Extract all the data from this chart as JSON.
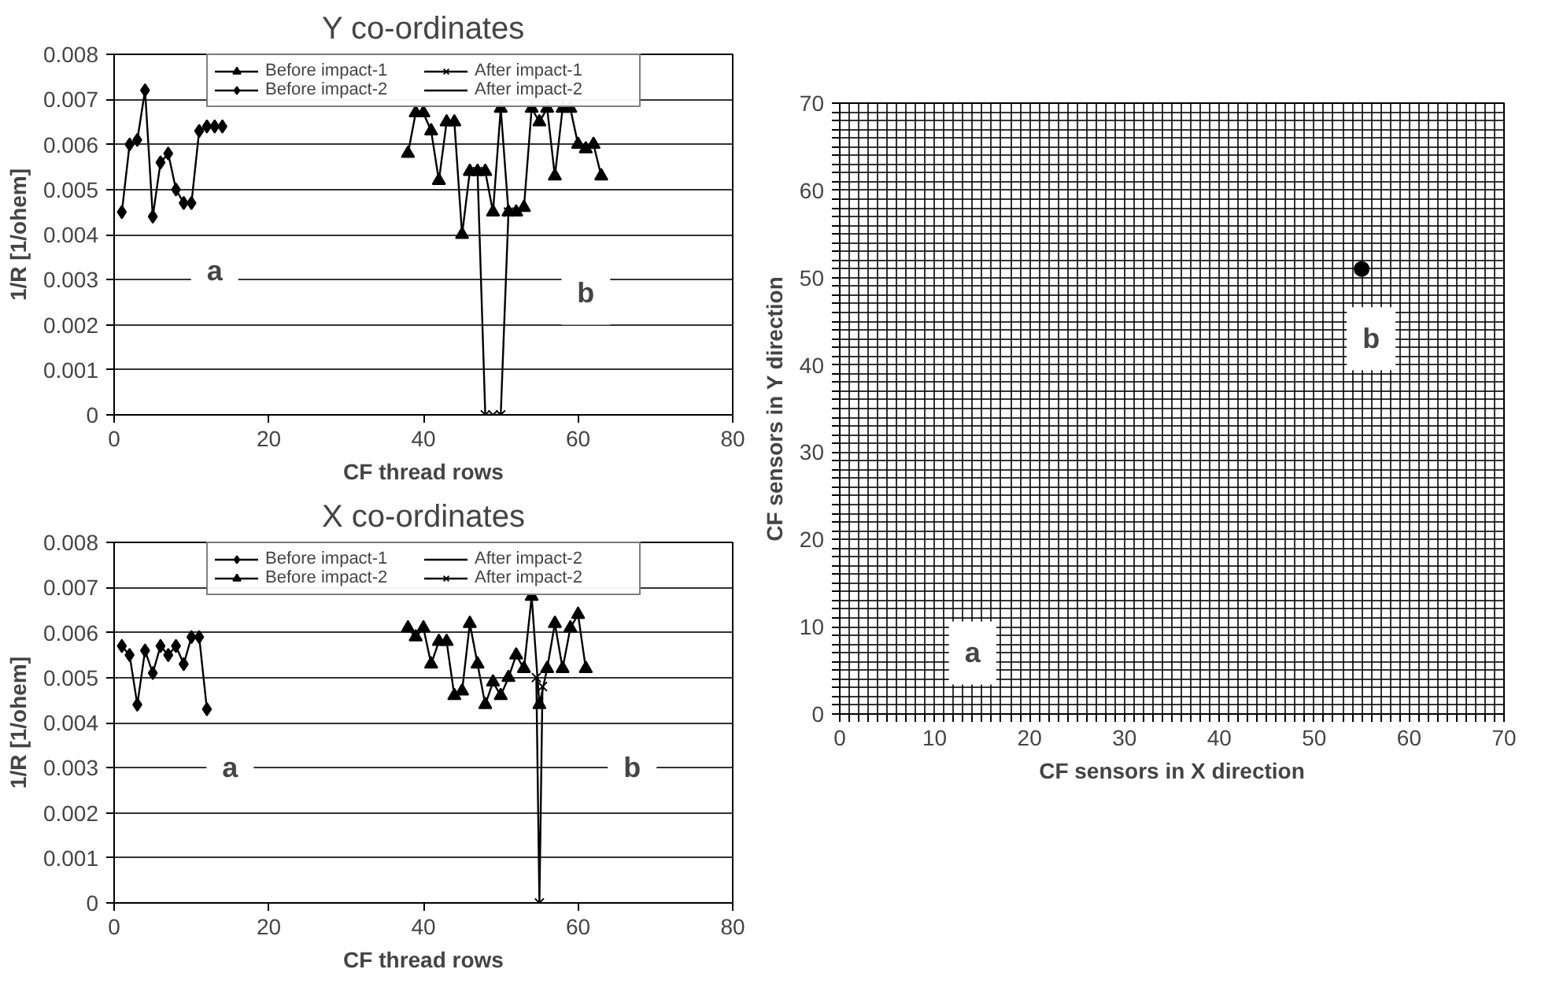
{
  "chart_data": [
    {
      "type": "line",
      "title": "Y co-ordinates",
      "xlabel": "CF thread rows",
      "ylabel": "1/R [1/ohem]",
      "xlim": [
        0,
        80
      ],
      "ylim": [
        0,
        0.008
      ],
      "xticks": [
        0,
        20,
        40,
        60,
        80
      ],
      "yticks": [
        0,
        0.001,
        0.002,
        0.003,
        0.004,
        0.005,
        0.006,
        0.007,
        0.008
      ],
      "grid": "y",
      "legend": "top",
      "series": [
        {
          "name": "Before impact-1",
          "color": "#000000",
          "marker": "triangle",
          "x": [
            38,
            39,
            40,
            41,
            42,
            43,
            44,
            45,
            46,
            47,
            48,
            49,
            50,
            51,
            52,
            53,
            54,
            55,
            56,
            57,
            58,
            59,
            60,
            61,
            62,
            63
          ],
          "values": [
            0.0058,
            0.0067,
            0.0067,
            0.0063,
            0.0052,
            0.0065,
            0.0065,
            0.004,
            0.0054,
            0.0054,
            0.0054,
            0.0045,
            0.0068,
            0.0045,
            0.0045,
            0.0046,
            0.0068,
            0.0065,
            0.0068,
            0.0053,
            0.0068,
            0.0068,
            0.006,
            0.0059,
            0.006,
            0.0053
          ]
        },
        {
          "name": "After impact-1",
          "color": "#000000",
          "marker": "cross",
          "x": [
            47,
            48,
            49,
            50,
            51
          ],
          "values": [
            0.0054,
            0,
            0,
            0,
            0.0045
          ]
        },
        {
          "name": "Before impact-2",
          "color": "#000000",
          "marker": "diamond",
          "x": [
            1,
            2,
            3,
            4,
            5,
            6,
            7,
            8,
            9,
            10,
            11,
            12,
            13,
            14
          ],
          "values": [
            0.0045,
            0.006,
            0.0061,
            0.0072,
            0.0044,
            0.0056,
            0.0058,
            0.005,
            0.0047,
            0.0047,
            0.0063,
            0.0064,
            0.0064,
            0.0064
          ]
        },
        {
          "name": "After impact-2",
          "color": "#000000",
          "marker": "none"
        }
      ],
      "annotations": [
        {
          "text": "a",
          "x": 13,
          "y": 0.0032
        },
        {
          "text": "b",
          "x": 61,
          "y": 0.0027
        }
      ]
    },
    {
      "type": "line",
      "title": "X co-ordinates",
      "xlabel": "CF thread rows",
      "ylabel": "1/R [1/ohem]",
      "xlim": [
        0,
        80
      ],
      "ylim": [
        0,
        0.008
      ],
      "xticks": [
        0,
        20,
        40,
        60,
        80
      ],
      "yticks": [
        0,
        0.001,
        0.002,
        0.003,
        0.004,
        0.005,
        0.006,
        0.007,
        0.008
      ],
      "grid": "y",
      "legend": "top",
      "series": [
        {
          "name": "Before impact-1",
          "color": "#000000",
          "marker": "diamond",
          "x": [
            1,
            2,
            3,
            4,
            5,
            6,
            7,
            8,
            9,
            10,
            11,
            12
          ],
          "values": [
            0.0057,
            0.0055,
            0.0044,
            0.0056,
            0.0051,
            0.0057,
            0.0055,
            0.0057,
            0.0053,
            0.0059,
            0.0059,
            0.0043
          ]
        },
        {
          "name": "After impact-2",
          "color": "#000000",
          "marker": "none"
        },
        {
          "name": "Before impact-2",
          "color": "#000000",
          "marker": "triangle",
          "x": [
            38,
            39,
            40,
            41,
            42,
            43,
            44,
            45,
            46,
            47,
            48,
            49,
            50,
            51,
            52,
            53,
            54,
            55,
            56,
            57,
            58,
            59,
            60,
            61
          ],
          "values": [
            0.0061,
            0.0059,
            0.0061,
            0.0053,
            0.0058,
            0.0058,
            0.0046,
            0.0047,
            0.0062,
            0.0053,
            0.0044,
            0.0049,
            0.0046,
            0.005,
            0.0055,
            0.0052,
            0.0068,
            0.0044,
            0.0052,
            0.0062,
            0.0052,
            0.0061,
            0.0064,
            0.0052
          ]
        },
        {
          "name": "After impact-2",
          "color": "#000000",
          "marker": "cross",
          "x": [
            54.6,
            55,
            55.4
          ],
          "values": [
            0.005,
            0,
            0.0048
          ]
        }
      ],
      "annotations": [
        {
          "text": "a",
          "x": 15,
          "y": 0.003
        },
        {
          "text": "b",
          "x": 67,
          "y": 0.003
        }
      ]
    },
    {
      "type": "scatter",
      "xlabel": "CF sensors in X direction",
      "ylabel": "CF sensors in Y direction",
      "xlim": [
        0,
        70
      ],
      "ylim": [
        0,
        70
      ],
      "grid": true,
      "legend": false,
      "marker": "circle",
      "xticks": [
        0,
        {
          "value": 1,
          "label": null
        },
        {
          "value": 2,
          "label": null
        },
        {
          "value": 3,
          "label": null
        },
        {
          "value": 4,
          "label": null
        },
        {
          "value": 5,
          "label": null
        },
        {
          "value": 6,
          "label": null
        },
        {
          "value": 7,
          "label": null
        },
        {
          "value": 8,
          "label": null
        },
        {
          "value": 9,
          "label": null
        },
        10,
        {
          "value": 11,
          "label": null
        },
        {
          "value": 12,
          "label": null
        },
        {
          "value": 13,
          "label": null
        },
        {
          "value": 14,
          "label": null
        },
        {
          "value": 15,
          "label": null
        },
        {
          "value": 16,
          "label": null
        },
        {
          "value": 17,
          "label": null
        },
        {
          "value": 18,
          "label": null
        },
        {
          "value": 19,
          "label": null
        },
        20,
        {
          "value": 21,
          "label": null
        },
        {
          "value": 22,
          "label": null
        },
        {
          "value": 23,
          "label": null
        },
        {
          "value": 24,
          "label": null
        },
        {
          "value": 25,
          "label": null
        },
        {
          "value": 26,
          "label": null
        },
        {
          "value": 27,
          "label": null
        },
        {
          "value": 28,
          "label": null
        },
        {
          "value": 29,
          "label": null
        },
        30,
        {
          "value": 31,
          "label": null
        },
        {
          "value": 32,
          "label": null
        },
        {
          "value": 33,
          "label": null
        },
        {
          "value": 34,
          "label": null
        },
        {
          "value": 35,
          "label": null
        },
        {
          "value": 36,
          "label": null
        },
        {
          "value": 37,
          "label": null
        },
        {
          "value": 38,
          "label": null
        },
        {
          "value": 39,
          "label": null
        },
        40,
        {
          "value": 41,
          "label": null
        },
        {
          "value": 42,
          "label": null
        },
        {
          "value": 43,
          "label": null
        },
        {
          "value": 44,
          "label": null
        },
        {
          "value": 45,
          "label": null
        },
        {
          "value": 46,
          "label": null
        },
        {
          "value": 47,
          "label": null
        },
        {
          "value": 48,
          "label": null
        },
        {
          "value": 49,
          "label": null
        },
        50,
        {
          "value": 51,
          "label": null
        },
        {
          "value": 52,
          "label": null
        },
        {
          "value": 53,
          "label": null
        },
        {
          "value": 54,
          "label": null
        },
        {
          "value": 55,
          "label": null
        },
        {
          "value": 56,
          "label": null
        },
        {
          "value": 57,
          "label": null
        },
        {
          "value": 58,
          "label": null
        },
        {
          "value": 59,
          "label": null
        },
        60,
        {
          "value": 61,
          "label": null
        },
        {
          "value": 62,
          "label": null
        },
        {
          "value": 63,
          "label": null
        },
        {
          "value": 64,
          "label": null
        },
        {
          "value": 65,
          "label": null
        },
        {
          "value": 66,
          "label": null
        },
        {
          "value": 67,
          "label": null
        },
        {
          "value": 68,
          "label": null
        },
        {
          "value": 69,
          "label": null
        },
        70
      ],
      "yticks": [
        0,
        {
          "value": 1,
          "label": null
        },
        {
          "value": 2,
          "label": null
        },
        {
          "value": 3,
          "label": null
        },
        {
          "value": 4,
          "label": null
        },
        {
          "value": 5,
          "label": null
        },
        {
          "value": 6,
          "label": null
        },
        {
          "value": 7,
          "label": null
        },
        {
          "value": 8,
          "label": null
        },
        {
          "value": 9,
          "label": null
        },
        10,
        {
          "value": 11,
          "label": null
        },
        {
          "value": 12,
          "label": null
        },
        {
          "value": 13,
          "label": null
        },
        {
          "value": 14,
          "label": null
        },
        {
          "value": 15,
          "label": null
        },
        {
          "value": 16,
          "label": null
        },
        {
          "value": 17,
          "label": null
        },
        {
          "value": 18,
          "label": null
        },
        {
          "value": 19,
          "label": null
        },
        20,
        {
          "value": 21,
          "label": null
        },
        {
          "value": 22,
          "label": null
        },
        {
          "value": 23,
          "label": null
        },
        {
          "value": 24,
          "label": null
        },
        {
          "value": 25,
          "label": null
        },
        {
          "value": 26,
          "label": null
        },
        {
          "value": 27,
          "label": null
        },
        {
          "value": 28,
          "label": null
        },
        {
          "value": 29,
          "label": null
        },
        30,
        {
          "value": 31,
          "label": null
        },
        {
          "value": 32,
          "label": null
        },
        {
          "value": 33,
          "label": null
        },
        {
          "value": 34,
          "label": null
        },
        {
          "value": 35,
          "label": null
        },
        {
          "value": 36,
          "label": null
        },
        {
          "value": 37,
          "label": null
        },
        {
          "value": 38,
          "label": null
        },
        {
          "value": 39,
          "label": null
        },
        40,
        {
          "value": 41,
          "label": null
        },
        {
          "value": 42,
          "label": null
        },
        {
          "value": 43,
          "label": null
        },
        {
          "value": 44,
          "label": null
        },
        {
          "value": 45,
          "label": null
        },
        {
          "value": 46,
          "label": null
        },
        {
          "value": 47,
          "label": null
        },
        {
          "value": 48,
          "label": null
        },
        {
          "value": 49,
          "label": null
        },
        50,
        {
          "value": 51,
          "label": null
        },
        {
          "value": 52,
          "label": null
        },
        {
          "value": 53,
          "label": null
        },
        {
          "value": 54,
          "label": null
        },
        {
          "value": 55,
          "label": null
        },
        {
          "value": 56,
          "label": null
        },
        {
          "value": 57,
          "label": null
        },
        {
          "value": 58,
          "label": null
        },
        {
          "value": 59,
          "label": null
        },
        60,
        {
          "value": 61,
          "label": null
        },
        {
          "value": 62,
          "label": null
        },
        {
          "value": 63,
          "label": null
        },
        {
          "value": 64,
          "label": null
        },
        {
          "value": 65,
          "label": null
        },
        {
          "value": 66,
          "label": null
        },
        {
          "value": 67,
          "label": null
        },
        {
          "value": 68,
          "label": null
        },
        {
          "value": 69,
          "label": null
        },
        70
      ],
      "series": [
        {
          "color": "#000000",
          "x": [
            55
          ],
          "values": [
            51
          ]
        }
      ],
      "annotations": [
        {
          "text": "a",
          "x": 14,
          "y": 7
        },
        {
          "text": "b",
          "x": 56,
          "y": 43
        }
      ]
    }
  ]
}
